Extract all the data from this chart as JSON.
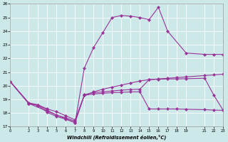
{
  "xlabel": "Windchill (Refroidissement éolien,°C)",
  "xlim": [
    0,
    23
  ],
  "ylim": [
    17,
    26
  ],
  "xticks": [
    0,
    2,
    3,
    4,
    5,
    6,
    7,
    8,
    9,
    10,
    11,
    12,
    13,
    14,
    15,
    16,
    17,
    18,
    19,
    21,
    22,
    23
  ],
  "yticks": [
    17,
    18,
    19,
    20,
    21,
    22,
    23,
    24,
    25,
    26
  ],
  "bg_color": "#cde8e8",
  "line_color": "#993399",
  "lines": [
    {
      "x": [
        0,
        2,
        7,
        8,
        9,
        10,
        11,
        12,
        13,
        14,
        15,
        16,
        17,
        19,
        21,
        22,
        23
      ],
      "y": [
        20.3,
        18.7,
        17.3,
        21.3,
        22.8,
        23.9,
        25.0,
        25.15,
        25.1,
        25.0,
        24.85,
        25.75,
        24.0,
        22.4,
        22.3,
        22.3,
        22.3
      ]
    },
    {
      "x": [
        0,
        2,
        3,
        4,
        5,
        6,
        7,
        8,
        9,
        10,
        11,
        12,
        13,
        14,
        15,
        16,
        17,
        18,
        19,
        21,
        22,
        23
      ],
      "y": [
        20.3,
        18.7,
        18.6,
        18.3,
        18.1,
        17.8,
        17.5,
        19.3,
        19.55,
        19.75,
        19.9,
        20.05,
        20.2,
        20.35,
        20.45,
        20.5,
        20.55,
        20.6,
        20.65,
        20.75,
        20.8,
        20.85
      ]
    },
    {
      "x": [
        0,
        2,
        3,
        4,
        5,
        6,
        7,
        8,
        9,
        10,
        11,
        12,
        13,
        14,
        15,
        16,
        17,
        18,
        19,
        21,
        22,
        23
      ],
      "y": [
        20.3,
        18.75,
        18.6,
        18.2,
        17.85,
        17.65,
        17.4,
        19.35,
        19.5,
        19.55,
        19.62,
        19.68,
        19.72,
        19.75,
        20.45,
        20.48,
        20.5,
        20.5,
        20.52,
        20.55,
        19.3,
        18.2
      ]
    },
    {
      "x": [
        0,
        2,
        3,
        4,
        5,
        6,
        7,
        8,
        9,
        10,
        11,
        12,
        13,
        14,
        15,
        16,
        17,
        18,
        19,
        21,
        22,
        23
      ],
      "y": [
        20.3,
        18.7,
        18.55,
        18.05,
        17.75,
        17.55,
        17.3,
        19.3,
        19.4,
        19.45,
        19.5,
        19.52,
        19.55,
        19.56,
        18.3,
        18.3,
        18.3,
        18.3,
        18.28,
        18.25,
        18.22,
        18.2
      ]
    }
  ]
}
